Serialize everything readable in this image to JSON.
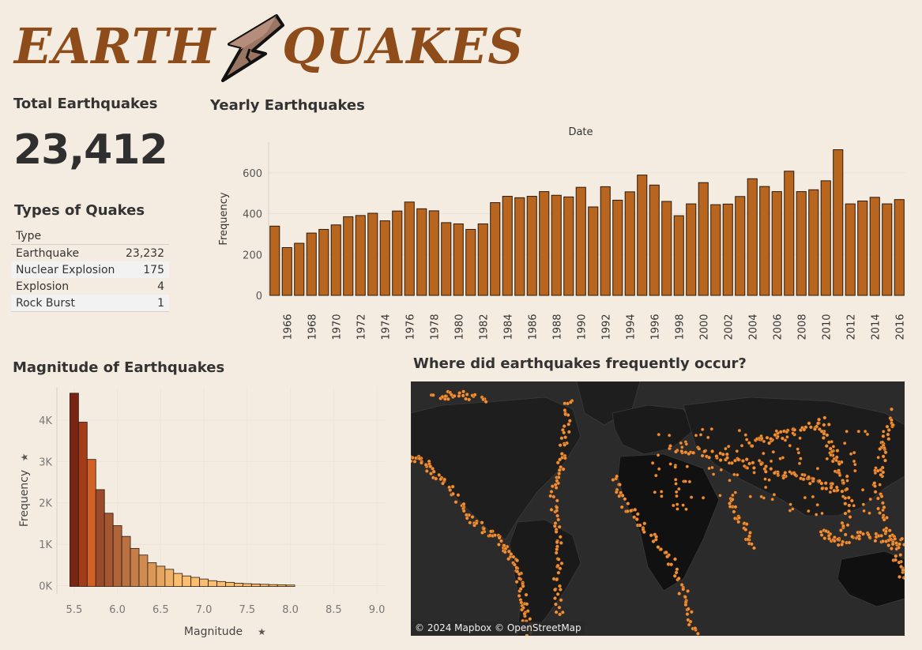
{
  "logo": {
    "word_left": "EARTH",
    "word_right": "QUAKES"
  },
  "total": {
    "title": "Total Earthquakes",
    "value": "23,412"
  },
  "types": {
    "title": "Types of Quakes",
    "header": "Type",
    "rows": [
      {
        "type": "Earthquake",
        "count": "23,232"
      },
      {
        "type": "Nuclear Explosion",
        "count": "175"
      },
      {
        "type": "Explosion",
        "count": "4"
      },
      {
        "type": "Rock Burst",
        "count": "1"
      }
    ]
  },
  "yearly": {
    "title": "Yearly Earthquakes",
    "date_label": "Date"
  },
  "magnitude": {
    "title": "Magnitude of Earthquakes"
  },
  "map": {
    "title": "Where did earthquakes frequently occur?",
    "attribution": "© 2024 Mapbox © OpenStreetMap"
  },
  "colors": {
    "background": "#f5ece1",
    "bar": "#b8651f",
    "bar_stroke": "#2a1a0d",
    "logo": "#8d4c1a",
    "map_land": "#1c1c1c",
    "map_ocean": "#2b2b2b",
    "quake_dot": "#f0913a"
  },
  "chart_data": [
    {
      "type": "bar",
      "title": "",
      "xlabel": "Date",
      "ylabel": "Frequency",
      "x": [
        1965,
        1966,
        1967,
        1968,
        1969,
        1970,
        1971,
        1972,
        1973,
        1974,
        1975,
        1976,
        1977,
        1978,
        1979,
        1980,
        1981,
        1982,
        1983,
        1984,
        1985,
        1986,
        1987,
        1988,
        1989,
        1990,
        1991,
        1992,
        1993,
        1994,
        1995,
        1996,
        1997,
        1998,
        1999,
        2000,
        2001,
        2002,
        2003,
        2004,
        2005,
        2006,
        2007,
        2008,
        2009,
        2010,
        2011,
        2012,
        2013,
        2014,
        2015,
        2016
      ],
      "x_tick_labels": [
        "1966",
        "1968",
        "1970",
        "1972",
        "1974",
        "1976",
        "1978",
        "1980",
        "1982",
        "1984",
        "1986",
        "1988",
        "1990",
        "1992",
        "1994",
        "1996",
        "1998",
        "2000",
        "2002",
        "2004",
        "2006",
        "2008",
        "2010",
        "2012",
        "2014",
        "2016"
      ],
      "values": [
        339,
        234,
        255,
        305,
        323,
        345,
        385,
        391,
        402,
        365,
        413,
        457,
        424,
        414,
        356,
        350,
        323,
        350,
        454,
        485,
        478,
        485,
        508,
        490,
        482,
        529,
        433,
        532,
        466,
        507,
        589,
        540,
        460,
        390,
        448,
        552,
        444,
        447,
        484,
        571,
        533,
        508,
        608,
        508,
        517,
        561,
        713,
        448,
        462,
        480,
        448,
        469
      ],
      "ylim": [
        0,
        750
      ],
      "y_ticks": [
        0,
        200,
        400,
        600
      ]
    },
    {
      "type": "bar",
      "title": "",
      "xlabel": "Magnitude",
      "ylabel": "Frequency",
      "x": [
        5.5,
        5.6,
        5.7,
        5.8,
        5.9,
        6.0,
        6.1,
        6.2,
        6.3,
        6.4,
        6.5,
        6.6,
        6.7,
        6.8,
        6.9,
        7.0,
        7.1,
        7.2,
        7.3,
        7.4,
        7.5,
        7.6,
        7.7,
        7.8,
        7.9,
        8.0
      ],
      "values": [
        4650,
        3950,
        3050,
        2320,
        1750,
        1450,
        1190,
        900,
        740,
        555,
        470,
        395,
        295,
        235,
        200,
        160,
        120,
        100,
        80,
        60,
        48,
        40,
        32,
        25,
        20,
        15
      ],
      "xlim": [
        5.3,
        9.1
      ],
      "ylim": [
        -200,
        4800
      ],
      "x_tick_labels": [
        "5.5",
        "6.0",
        "6.5",
        "7.0",
        "7.5",
        "8.0",
        "8.5",
        "9.0"
      ],
      "x_ticks": [
        5.5,
        6.0,
        6.5,
        7.0,
        7.5,
        8.0,
        8.5,
        9.0
      ],
      "y_tick_labels": [
        "0K",
        "1K",
        "2K",
        "3K",
        "4K"
      ],
      "y_ticks": [
        0,
        1000,
        2000,
        3000,
        4000
      ]
    }
  ]
}
